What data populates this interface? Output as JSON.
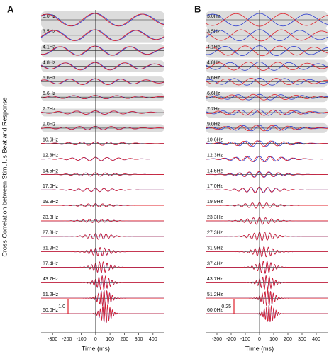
{
  "chart_data": [
    {
      "type": "line",
      "panel_label": "A",
      "y_label": "Cross Correlation between Stimulus Beat and Response",
      "x_label": "Time (ms)",
      "xlim": [
        -380,
        480
      ],
      "xticks": [
        -300,
        -200,
        -100,
        0,
        100,
        200,
        300,
        400
      ],
      "scale_bar": "1.0",
      "rows": [
        {
          "value": 3.0,
          "label": "3.0Hz"
        },
        {
          "value": 3.5,
          "label": "3.5Hz"
        },
        {
          "value": 4.1,
          "label": "4.1Hz"
        },
        {
          "value": 4.8,
          "label": "4.8Hz"
        },
        {
          "value": 5.6,
          "label": "5.6Hz"
        },
        {
          "value": 6.6,
          "label": "6.6Hz"
        },
        {
          "value": 7.7,
          "label": "7.7Hz"
        },
        {
          "value": 9.0,
          "label": "9.0Hz"
        },
        {
          "value": 10.6,
          "label": "10.6Hz"
        },
        {
          "value": 12.3,
          "label": "12.3Hz"
        },
        {
          "value": 14.5,
          "label": "14.5Hz"
        },
        {
          "value": 17.0,
          "label": "17.0Hz"
        },
        {
          "value": 19.9,
          "label": "19.9Hz"
        },
        {
          "value": 23.3,
          "label": "23.3Hz"
        },
        {
          "value": 27.3,
          "label": "27.3Hz"
        },
        {
          "value": 31.9,
          "label": "31.9Hz"
        },
        {
          "value": 37.4,
          "label": "37.4Hz"
        },
        {
          "value": 43.7,
          "label": "43.7Hz"
        },
        {
          "value": 51.2,
          "label": "51.2Hz"
        },
        {
          "value": 60.0,
          "label": "60.0Hz"
        }
      ]
    },
    {
      "type": "line",
      "panel_label": "B",
      "x_label": "Time (ms)",
      "xlim": [
        -380,
        480
      ],
      "xticks": [
        -300,
        -200,
        -100,
        0,
        100,
        200,
        300,
        400
      ],
      "scale_bar": "0.25",
      "rows": [
        {
          "value": 3.0,
          "label": "3.0Hz"
        },
        {
          "value": 3.5,
          "label": "3.5Hz"
        },
        {
          "value": 4.1,
          "label": "4.1Hz"
        },
        {
          "value": 4.8,
          "label": "4.8Hz"
        },
        {
          "value": 5.6,
          "label": "5.6Hz"
        },
        {
          "value": 6.6,
          "label": "6.6Hz"
        },
        {
          "value": 7.7,
          "label": "7.7Hz"
        },
        {
          "value": 9.0,
          "label": "9.0Hz"
        },
        {
          "value": 10.6,
          "label": "10.6Hz"
        },
        {
          "value": 12.3,
          "label": "12.3Hz"
        },
        {
          "value": 14.5,
          "label": "14.5Hz"
        },
        {
          "value": 17.0,
          "label": "17.0Hz"
        },
        {
          "value": 19.9,
          "label": "19.9Hz"
        },
        {
          "value": 23.3,
          "label": "23.3Hz"
        },
        {
          "value": 27.3,
          "label": "27.3Hz"
        },
        {
          "value": 31.9,
          "label": "31.9Hz"
        },
        {
          "value": 37.4,
          "label": "37.4Hz"
        },
        {
          "value": 43.7,
          "label": "43.7Hz"
        },
        {
          "value": 51.2,
          "label": "51.2Hz"
        },
        {
          "value": 60.0,
          "label": "60.0Hz"
        }
      ]
    }
  ]
}
